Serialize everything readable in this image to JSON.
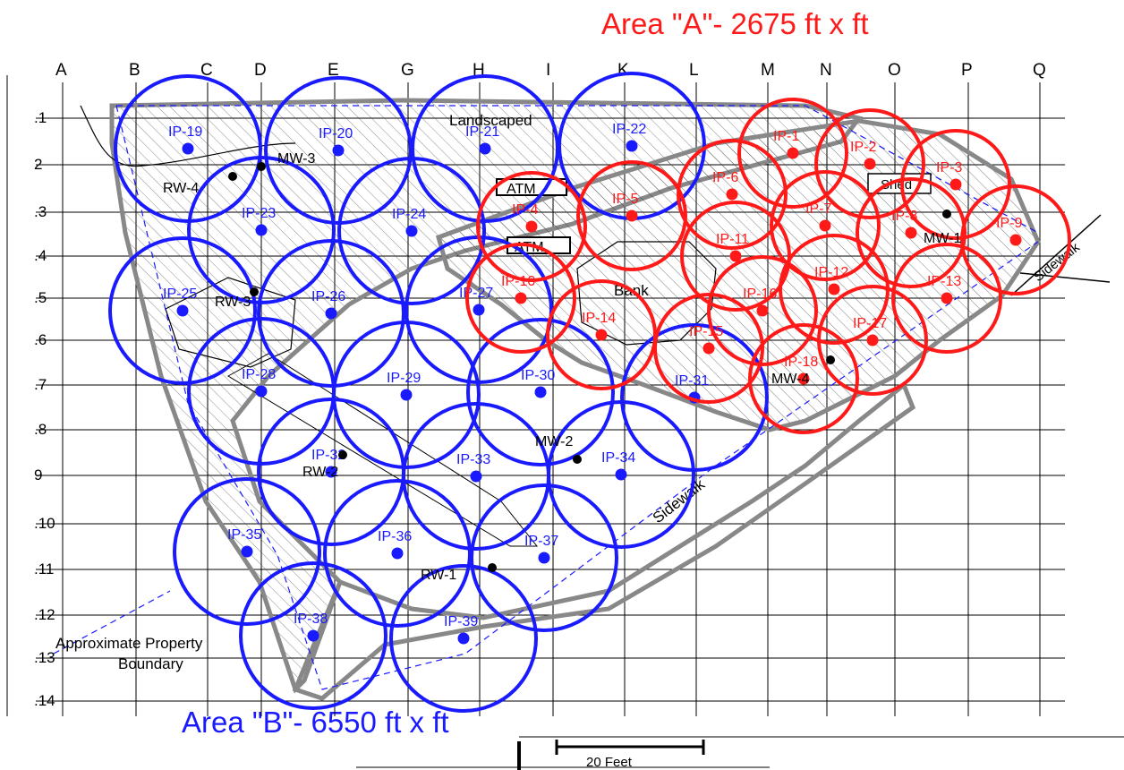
{
  "colors": {
    "area_a": "#ff1a1a",
    "area_b": "#1a1aff",
    "line": "#000000",
    "site": "#888888"
  },
  "titles": {
    "area_a": "Area \"A\"- 2675 ft x ft",
    "area_b": "Area \"B\"- 6550 ft x ft"
  },
  "grid": {
    "columns": [
      "A",
      "B",
      "C",
      "D",
      "E",
      "G",
      "H",
      "I",
      "K",
      "L",
      "M",
      "N",
      "O",
      "P",
      "Q"
    ],
    "rows": [
      ".1",
      "2",
      ".3",
      ".4",
      ".5",
      ".6",
      ".7",
      ".8",
      "9",
      ".10",
      ".11",
      ".12",
      ".13",
      ".14"
    ]
  },
  "labels": {
    "landscaped": "Landscaped",
    "atm_top": "ATM",
    "atm_bottom": "ATM",
    "bank": "Bank",
    "shed": "Shed",
    "sidewalk_main": "Sidewalk",
    "sidewalk_right": "Sidewalk",
    "property_line1": "Approximate Property",
    "property_line2": "Boundary",
    "scale": "20 Feet"
  },
  "wells": [
    {
      "label": "MW-3"
    },
    {
      "label": "RW-4"
    },
    {
      "label": "RW-3"
    },
    {
      "label": "RW-2"
    },
    {
      "label": "MW-2"
    },
    {
      "label": "RW-1"
    },
    {
      "label": "MW-1"
    },
    {
      "label": "MW-4"
    }
  ],
  "points_a": [
    "IP-1",
    "IP-2",
    "IP-3",
    "IP-4",
    "IP-5",
    "IP-6",
    "IP-7",
    "IP-8",
    "IP-9",
    "IP-10",
    "IP-11",
    "IP-12",
    "IP-13",
    "IP-14",
    "IP-15",
    "IP-16",
    "IP-17",
    "IP-18"
  ],
  "points_b": [
    "IP-19",
    "IP-20",
    "IP-21",
    "IP-22",
    "IP-23",
    "IP-24",
    "IP-25",
    "IP-26",
    "IP-27",
    "IP-28",
    "IP-29",
    "IP-30",
    "IP-31",
    "IP-32",
    "IP-33",
    "IP-34",
    "IP-35",
    "IP-36",
    "IP-37",
    "IP-38",
    "IP-39"
  ]
}
